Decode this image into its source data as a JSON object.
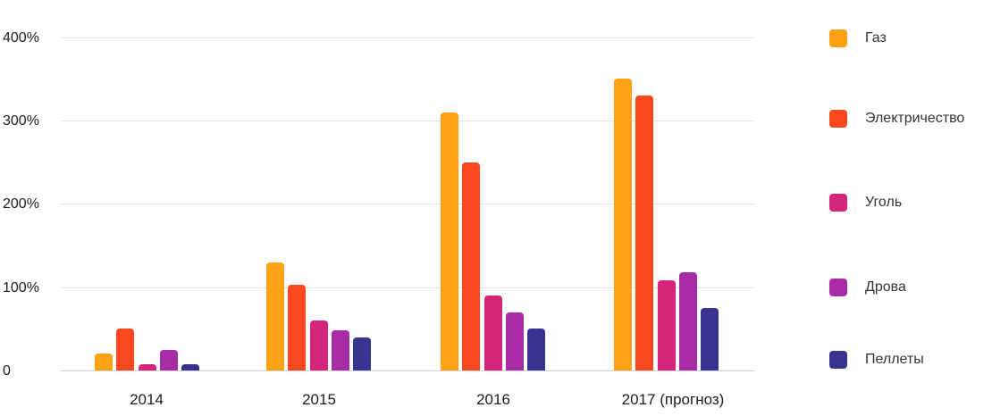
{
  "chart_data": {
    "type": "bar",
    "categories": [
      "2014",
      "2015",
      "2016",
      "2017 (прогноз)"
    ],
    "series": [
      {
        "name": "Газ",
        "color": "#FFA114",
        "values": [
          20,
          130,
          310,
          350
        ]
      },
      {
        "name": "Электричество",
        "color": "#F9481E",
        "values": [
          50,
          103,
          250,
          330
        ]
      },
      {
        "name": "Уголь",
        "color": "#D4257A",
        "values": [
          8,
          60,
          90,
          108
        ]
      },
      {
        "name": "Дрова",
        "color": "#A62BA5",
        "values": [
          25,
          48,
          70,
          118
        ]
      },
      {
        "name": "Пеллеты",
        "color": "#37348F",
        "values": [
          8,
          40,
          50,
          75
        ]
      }
    ],
    "y_ticks": [
      {
        "value": 400,
        "label": "400%"
      },
      {
        "value": 300,
        "label": "300%"
      },
      {
        "value": 200,
        "label": "200%"
      },
      {
        "value": 100,
        "label": "100%"
      },
      {
        "value": 0,
        "label": "0"
      }
    ],
    "ylim": [
      0,
      400
    ],
    "grid": true,
    "legend_position": "right"
  },
  "colors": {
    "gridline": "#E3E3E3",
    "baseline": "#CFCFCF",
    "axis_text": "#1C1C1C",
    "legend_text": "#333333",
    "background": "#FFFFFF"
  }
}
